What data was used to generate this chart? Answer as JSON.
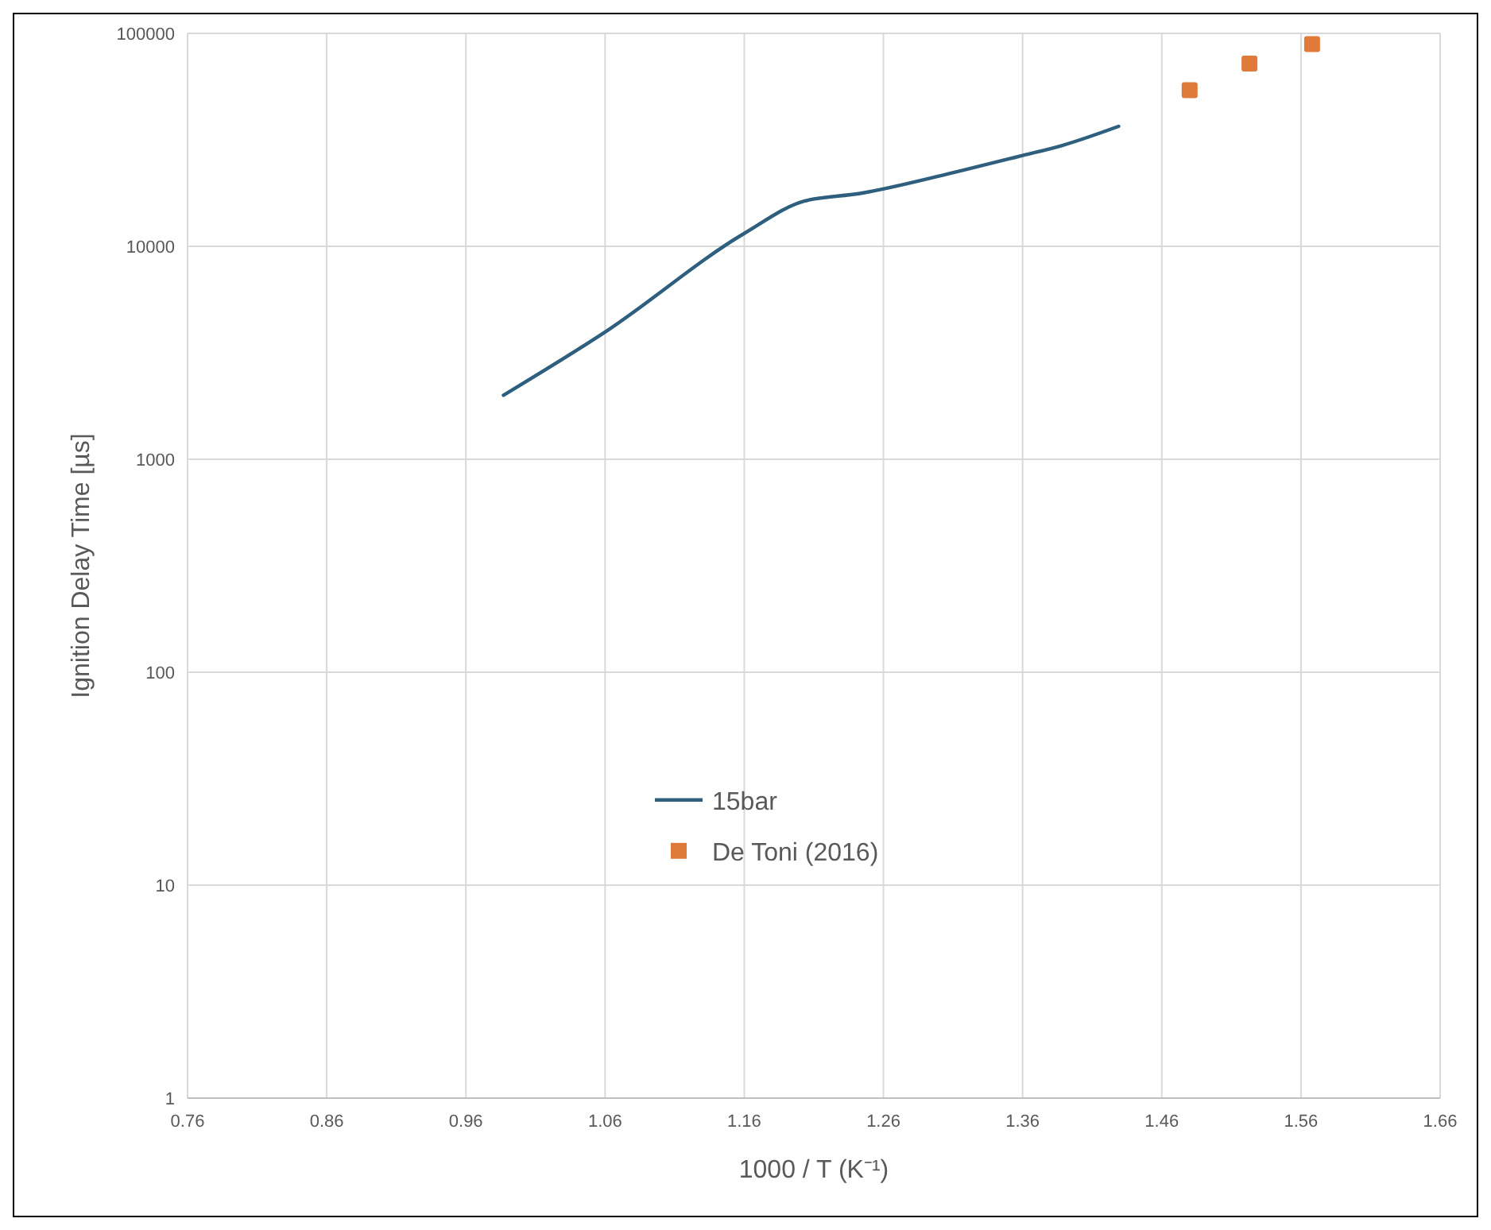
{
  "chart_data": {
    "type": "line",
    "xlabel": "1000 / T (K⁻¹)",
    "ylabel": "Ignition Delay Time [µs]",
    "log": "y",
    "grid": true,
    "legend": "bottom",
    "xlim": [
      0.76,
      1.66
    ],
    "xticks": [
      0.76,
      0.86,
      0.96,
      1.06,
      1.16,
      1.26,
      1.36,
      1.46,
      1.56,
      1.66
    ],
    "ylim": [
      1,
      100000
    ],
    "yticks": [
      1,
      10,
      100,
      1000,
      10000,
      100000
    ],
    "series": [
      {
        "name": "15bar",
        "color": "#2e5f7f",
        "marker": "none",
        "line_style": "solid",
        "x": [
          0.987,
          1.06,
          1.16,
          1.203,
          1.243,
          1.314,
          1.36,
          1.388,
          1.429
        ],
        "values": [
          2000,
          3960,
          11500,
          16300,
          17700,
          22500,
          26700,
          29700,
          36600
        ]
      },
      {
        "name": "De Toni (2016)",
        "type": "scatter",
        "color": "#e07a3a",
        "marker": "square",
        "x": [
          1.48,
          1.523,
          1.568
        ],
        "values": [
          54100,
          72200,
          89000
        ]
      }
    ]
  }
}
